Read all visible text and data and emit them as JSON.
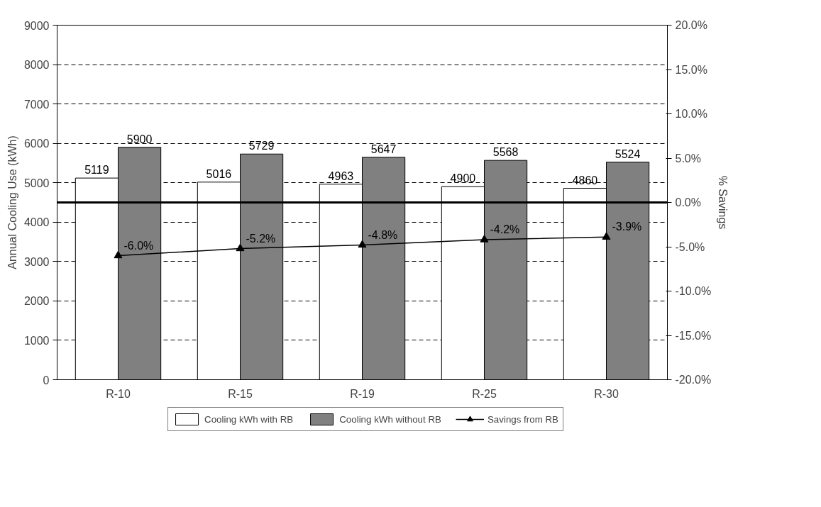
{
  "chart_data": {
    "type": "bar",
    "categories": [
      "R-10",
      "R-15",
      "R-19",
      "R-25",
      "R-30"
    ],
    "ylabel": "Annual Cooling Use (kWh)",
    "y2label": "% Savings",
    "series": [
      {
        "name": "Cooling kWh with RB",
        "color": "#ffffff",
        "values": [
          5119,
          5016,
          4963,
          4900,
          4860
        ]
      },
      {
        "name": "Cooling kWh without RB",
        "color": "#808080",
        "values": [
          5900,
          5729,
          5647,
          5568,
          5524
        ]
      },
      {
        "name": "Savings from RB",
        "type": "line",
        "axis": "y2",
        "color": "#000000",
        "marker": "triangle",
        "values": [
          -6.0,
          -5.2,
          -4.8,
          -4.2,
          -3.9
        ],
        "value_labels": [
          "-6.0%",
          "-5.2%",
          "-4.8%",
          "-4.2%",
          "-3.9%"
        ]
      }
    ],
    "ylim": [
      0,
      9000
    ],
    "yticks": [
      0,
      1000,
      2000,
      3000,
      4000,
      5000,
      6000,
      7000,
      8000,
      9000
    ],
    "y2lim": [
      -20,
      20
    ],
    "y2ticks": [
      {
        "value": -20,
        "label": "-20.0%"
      },
      {
        "value": -15,
        "label": "-15.0%"
      },
      {
        "value": -10,
        "label": "-10.0%"
      },
      {
        "value": -5,
        "label": "-5.0%"
      },
      {
        "value": 0,
        "label": "0.0%"
      },
      {
        "value": 5,
        "label": "5.0%"
      },
      {
        "value": 10,
        "label": "10.0%"
      },
      {
        "value": 15,
        "label": "15.0%"
      },
      {
        "value": 20,
        "label": "20.0%"
      }
    ],
    "ref_lines": [
      {
        "axis": "y2",
        "value": 0,
        "label": null,
        "color": "#000000"
      }
    ],
    "data_labels": true,
    "grid": "y",
    "legend": "bottom"
  }
}
